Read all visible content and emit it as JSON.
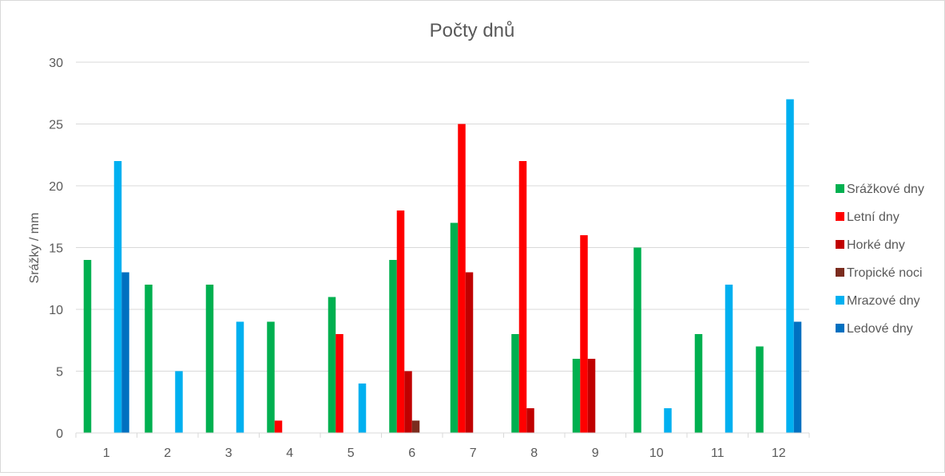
{
  "chart_data": {
    "type": "bar",
    "title": "Počty dnů",
    "xlabel": "",
    "ylabel": "Srážky / mm",
    "ylim": [
      0,
      30
    ],
    "yticks": [
      0,
      5,
      10,
      15,
      20,
      25,
      30
    ],
    "grid": true,
    "legend_position": "right",
    "categories": [
      "1",
      "2",
      "3",
      "4",
      "5",
      "6",
      "7",
      "8",
      "9",
      "10",
      "11",
      "12"
    ],
    "series": [
      {
        "name": "Srážkové dny",
        "color": "#00b050",
        "values": [
          14,
          12,
          12,
          9,
          11,
          14,
          17,
          8,
          6,
          15,
          8,
          7
        ]
      },
      {
        "name": "Letní dny",
        "color": "#ff0000",
        "values": [
          0,
          0,
          0,
          1,
          8,
          18,
          25,
          22,
          16,
          0,
          0,
          0
        ]
      },
      {
        "name": "Horké dny",
        "color": "#c00000",
        "values": [
          0,
          0,
          0,
          0,
          0,
          5,
          13,
          2,
          6,
          0,
          0,
          0
        ]
      },
      {
        "name": "Tropické noci",
        "color": "#7b2c1e",
        "values": [
          0,
          0,
          0,
          0,
          0,
          1,
          0,
          0,
          0,
          0,
          0,
          0
        ]
      },
      {
        "name": "Mrazové dny",
        "color": "#00b0f0",
        "values": [
          22,
          5,
          9,
          0,
          4,
          0,
          0,
          0,
          0,
          2,
          12,
          27
        ]
      },
      {
        "name": "Ledové dny",
        "color": "#0070c0",
        "values": [
          13,
          0,
          0,
          0,
          0,
          0,
          0,
          0,
          0,
          0,
          0,
          9
        ]
      }
    ]
  }
}
